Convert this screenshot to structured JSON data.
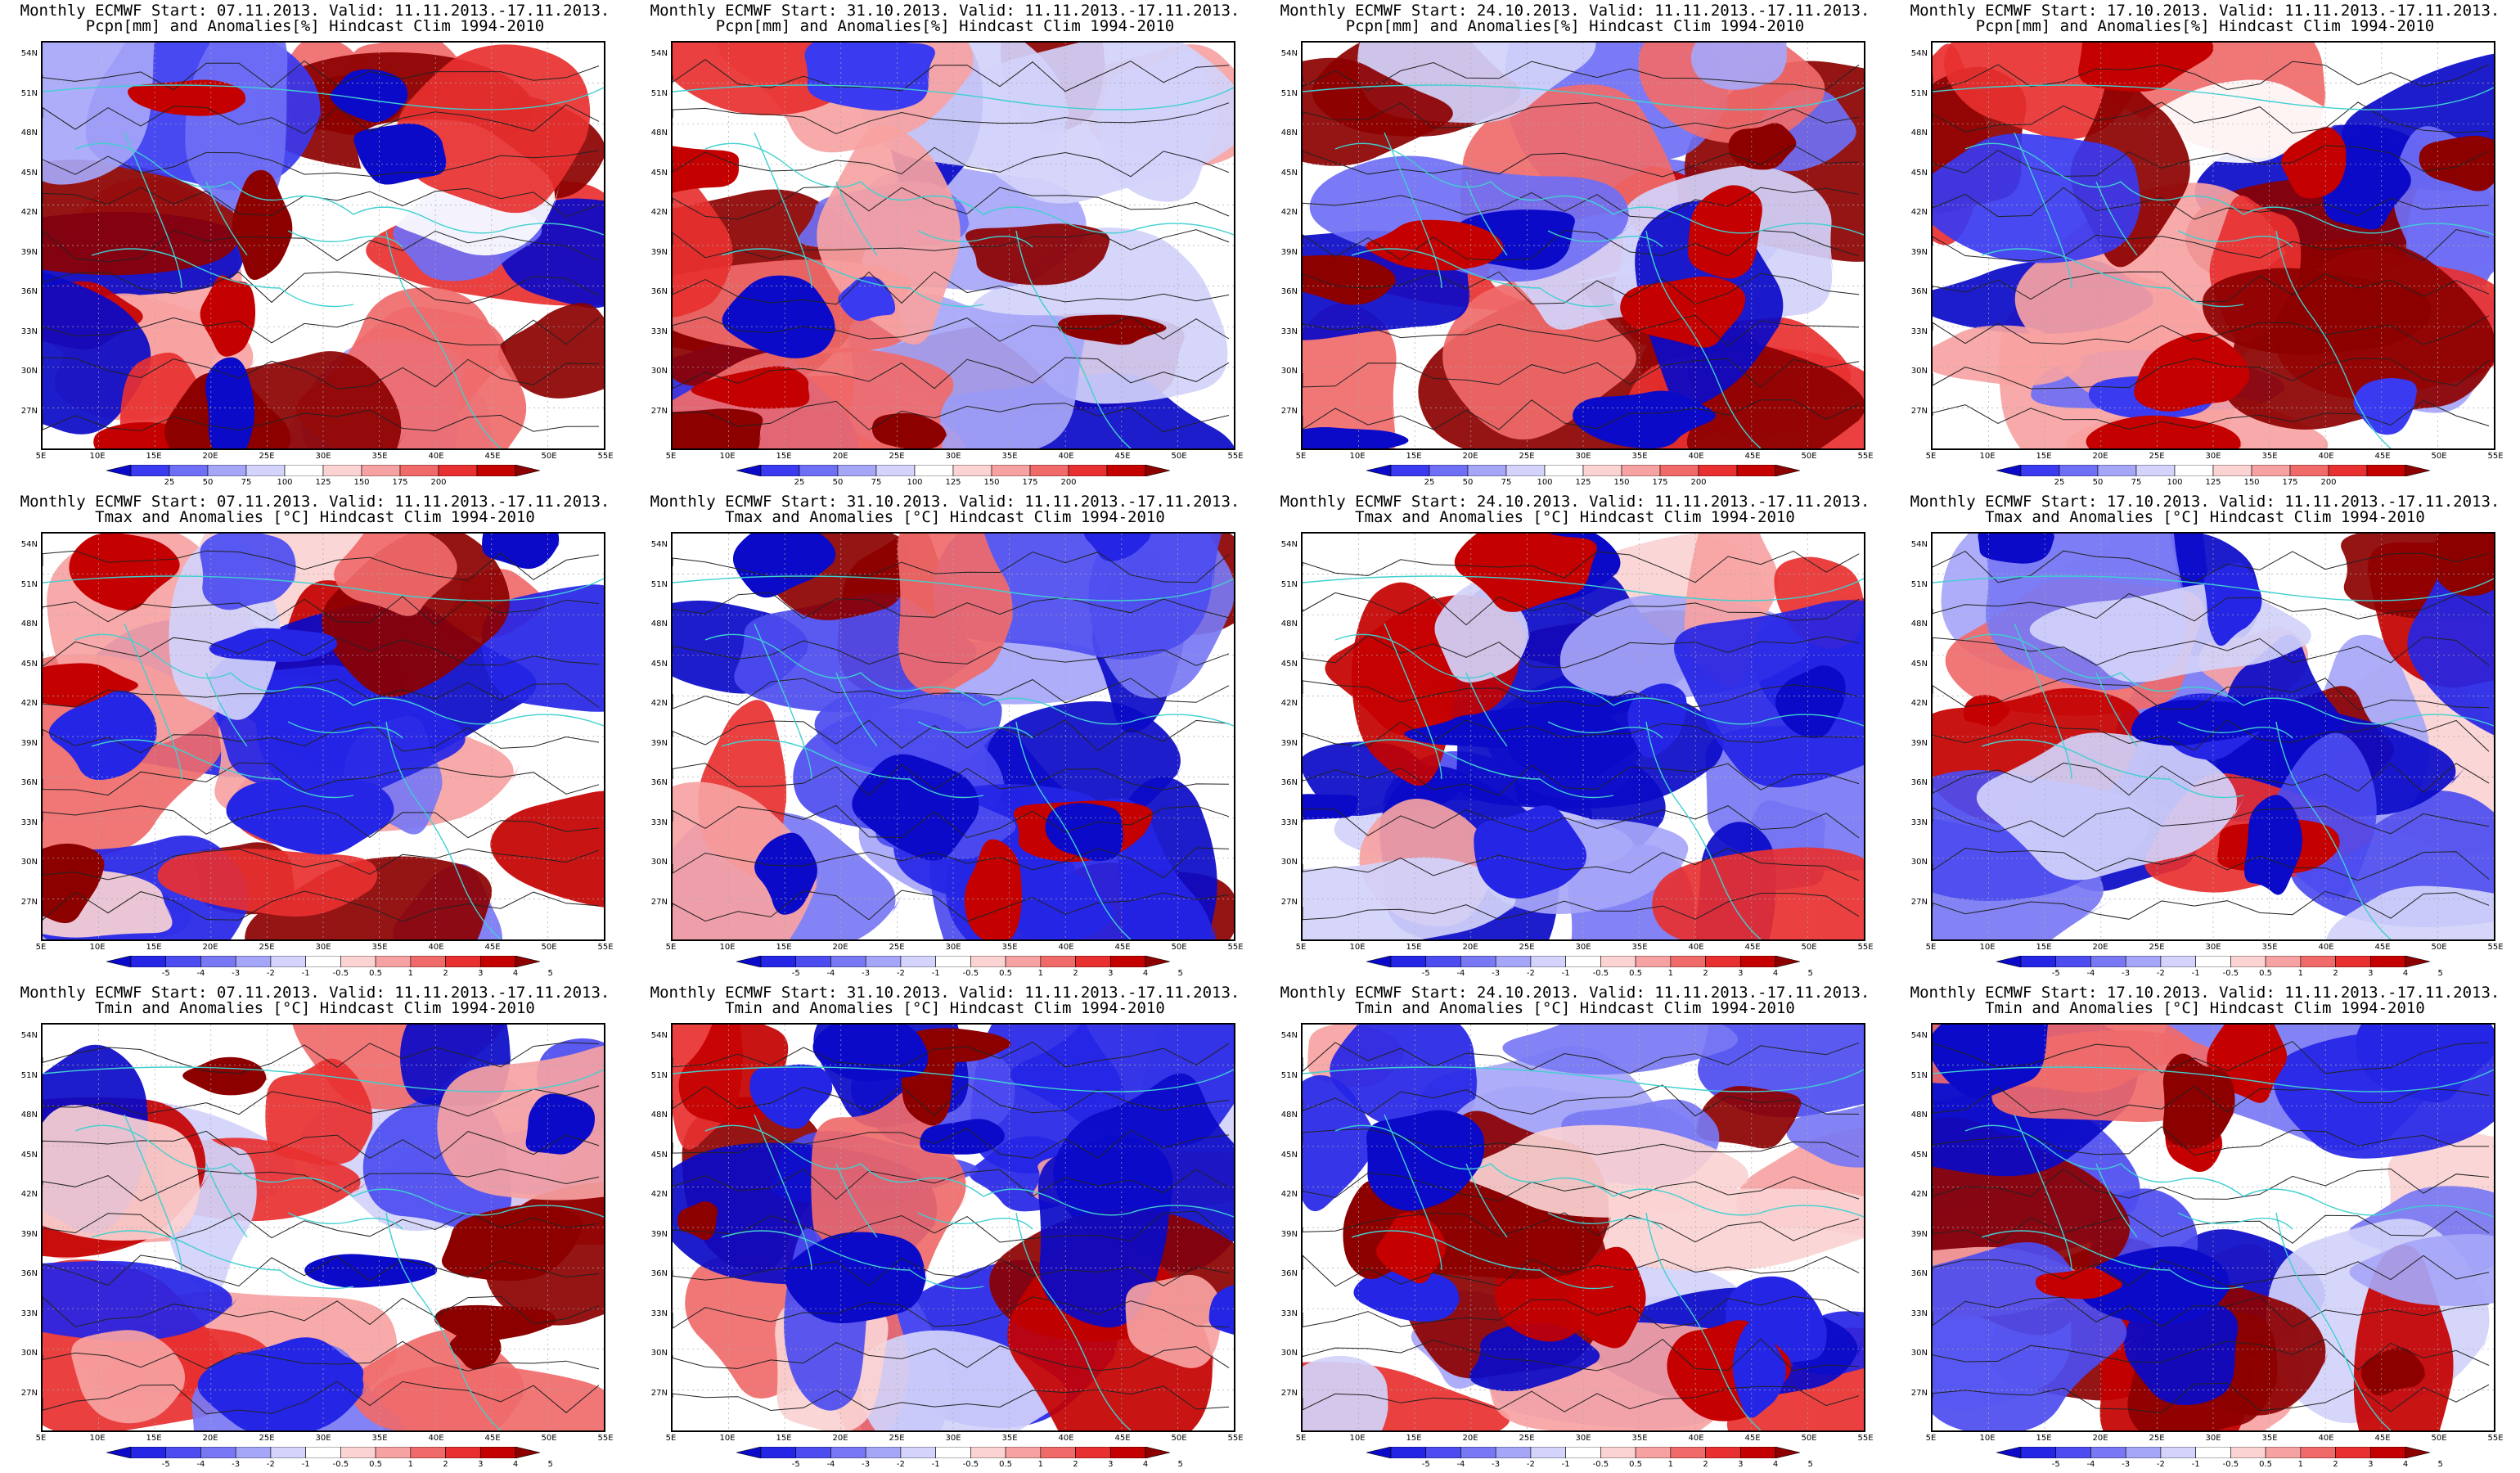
{
  "panels": [
    {
      "row": 0,
      "col": 0,
      "product": "precip",
      "warm": "high",
      "line1": "Monthly ECMWF Start: 07.11.2013. Valid: 11.11.2013.-17.11.2013.",
      "line2": "Pcpn[mm] and Anomalies[%] Hindcast Clim 1994-2010"
    },
    {
      "row": 0,
      "col": 1,
      "product": "precip",
      "warm": "high",
      "line1": "Monthly ECMWF Start: 31.10.2013. Valid: 11.11.2013.-17.11.2013.",
      "line2": "Pcpn[mm] and Anomalies[%] Hindcast Clim 1994-2010"
    },
    {
      "row": 0,
      "col": 2,
      "product": "precip",
      "warm": "mid",
      "line1": "Monthly ECMWF Start: 24.10.2013. Valid: 11.11.2013.-17.11.2013.",
      "line2": "Pcpn[mm] and Anomalies[%] Hindcast Clim 1994-2010"
    },
    {
      "row": 0,
      "col": 3,
      "product": "precip",
      "warm": "mid",
      "line1": "Monthly ECMWF Start: 17.10.2013. Valid: 11.11.2013.-17.11.2013.",
      "line2": "Pcpn[mm] and Anomalies[%] Hindcast Clim 1994-2010"
    },
    {
      "row": 1,
      "col": 0,
      "product": "temp",
      "warm": "high",
      "line1": "Monthly ECMWF Start: 07.11.2013. Valid: 11.11.2013.-17.11.2013.",
      "line2": "Tmax and Anomalies [°C] Hindcast Clim 1994-2010"
    },
    {
      "row": 1,
      "col": 1,
      "product": "temp",
      "warm": "mid",
      "line1": "Monthly ECMWF Start: 31.10.2013. Valid: 11.11.2013.-17.11.2013.",
      "line2": "Tmax and Anomalies [°C] Hindcast Clim 1994-2010"
    },
    {
      "row": 1,
      "col": 2,
      "product": "temp",
      "warm": "low",
      "line1": "Monthly ECMWF Start: 24.10.2013. Valid: 11.11.2013.-17.11.2013.",
      "line2": "Tmax and Anomalies [°C] Hindcast Clim 1994-2010"
    },
    {
      "row": 1,
      "col": 3,
      "product": "temp",
      "warm": "low",
      "line1": "Monthly ECMWF Start: 17.10.2013. Valid: 11.11.2013.-17.11.2013.",
      "line2": "Tmax and Anomalies [°C] Hindcast Clim 1994-2010"
    },
    {
      "row": 2,
      "col": 0,
      "product": "temp",
      "warm": "high",
      "line1": "Monthly ECMWF Start: 07.11.2013. Valid: 11.11.2013.-17.11.2013.",
      "line2": "Tmin and Anomalies [°C] Hindcast Clim 1994-2010"
    },
    {
      "row": 2,
      "col": 1,
      "product": "temp",
      "warm": "mid",
      "line1": "Monthly ECMWF Start: 31.10.2013. Valid: 11.11.2013.-17.11.2013.",
      "line2": "Tmin and Anomalies [°C] Hindcast Clim 1994-2010"
    },
    {
      "row": 2,
      "col": 2,
      "product": "temp",
      "warm": "low",
      "line1": "Monthly ECMWF Start: 24.10.2013. Valid: 11.11.2013.-17.11.2013.",
      "line2": "Tmin and Anomalies [°C] Hindcast Clim 1994-2010"
    },
    {
      "row": 2,
      "col": 3,
      "product": "temp",
      "warm": "low",
      "line1": "Monthly ECMWF Start: 17.10.2013. Valid: 11.11.2013.-17.11.2013.",
      "line2": "Tmin and Anomalies [°C] Hindcast Clim 1994-2010"
    }
  ],
  "axes": {
    "lat_labels": [
      "54N",
      "51N",
      "48N",
      "45N",
      "42N",
      "39N",
      "36N",
      "33N",
      "30N",
      "27N"
    ],
    "lon_labels": [
      "5E",
      "10E",
      "15E",
      "20E",
      "25E",
      "30E",
      "35E",
      "40E",
      "45E",
      "50E",
      "55E"
    ]
  },
  "colorbars": {
    "precip": {
      "labels": [
        "25",
        "50",
        "75",
        "100",
        "125",
        "150",
        "175",
        "200"
      ],
      "colors": [
        "#0a0ac8",
        "#3a3af0",
        "#6f6ff5",
        "#a6a6f8",
        "#d3d3fb",
        "#ffffff",
        "#fbd3d3",
        "#f7a2a2",
        "#f06a6a",
        "#e83030",
        "#c40000",
        "#8c0000"
      ]
    },
    "temp": {
      "labels": [
        "-5",
        "-4",
        "-3",
        "-2",
        "-1",
        "-0.5",
        "0.5",
        "1",
        "2",
        "3",
        "4",
        "5"
      ],
      "colors": [
        "#0a0ac8",
        "#2525e6",
        "#4c4cf0",
        "#7878f4",
        "#a6a6f8",
        "#d3d3fb",
        "#ffffff",
        "#fbd3d3",
        "#f7a2a2",
        "#f06a6a",
        "#e83030",
        "#c40000",
        "#8c0000"
      ]
    }
  },
  "colors": {
    "coast": "#40d0d0",
    "contour": "#222222",
    "frame": "#000000"
  }
}
